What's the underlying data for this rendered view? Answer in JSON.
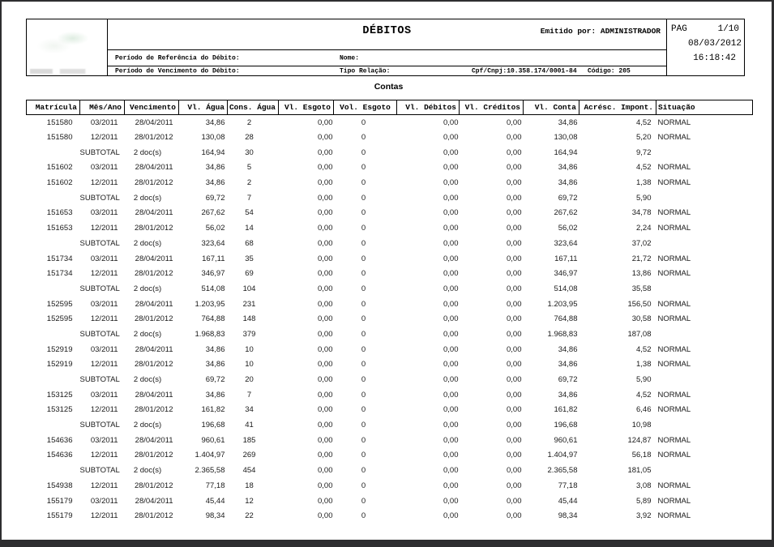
{
  "frame_color": "#2e2e30",
  "header": {
    "title": "DÉBITOS",
    "emitted_by_label": "Emitido por:",
    "emitted_by_value": "ADMINISTRADOR",
    "page_label": "PAG",
    "page_value": "1/10",
    "date": "08/03/2012",
    "time": "16:18:42",
    "ref_period_label": "Período de Referência do Débito:",
    "due_period_label": "Período de Vencimento do Débito:",
    "name_label": "Nome:",
    "relation_label": "Tipo Relação:",
    "cpf_cnpj": "Cpf/Cnpj:10.358.174/0001-84",
    "code": "Código: 205"
  },
  "section_title": "Contas",
  "table": {
    "columns": [
      "Matrícula",
      "Mês/Ano",
      "Vencimento",
      "Vl. Água",
      "Cons. Água",
      "Vl. Esgoto",
      "Vol. Esgoto",
      "Vl. Débitos",
      "Vl. Créditos",
      "Vl. Conta",
      "Acrésc. Impont.",
      "Situação"
    ],
    "column_keys": [
      "matricula",
      "mes-ano",
      "vencimento",
      "vl-agua",
      "cons-agua",
      "vl-esgoto",
      "vol-esgoto",
      "vl-debitos",
      "vl-creditos",
      "vl-conta",
      "acresc-impont",
      "situacao"
    ],
    "rows": [
      [
        "151580",
        "03/2011",
        "28/04/2011",
        "34,86",
        "2",
        "0,00",
        "0",
        "0,00",
        "0,00",
        "34,86",
        "4,52",
        "NORMAL"
      ],
      [
        "151580",
        "12/2011",
        "28/01/2012",
        "130,08",
        "28",
        "0,00",
        "0",
        "0,00",
        "0,00",
        "130,08",
        "5,20",
        "NORMAL"
      ],
      [
        "",
        "SUBTOTAL",
        "2 doc(s)",
        "164,94",
        "30",
        "0,00",
        "0",
        "0,00",
        "0,00",
        "164,94",
        "9,72",
        ""
      ],
      [
        "151602",
        "03/2011",
        "28/04/2011",
        "34,86",
        "5",
        "0,00",
        "0",
        "0,00",
        "0,00",
        "34,86",
        "4,52",
        "NORMAL"
      ],
      [
        "151602",
        "12/2011",
        "28/01/2012",
        "34,86",
        "2",
        "0,00",
        "0",
        "0,00",
        "0,00",
        "34,86",
        "1,38",
        "NORMAL"
      ],
      [
        "",
        "SUBTOTAL",
        "2 doc(s)",
        "69,72",
        "7",
        "0,00",
        "0",
        "0,00",
        "0,00",
        "69,72",
        "5,90",
        ""
      ],
      [
        "151653",
        "03/2011",
        "28/04/2011",
        "267,62",
        "54",
        "0,00",
        "0",
        "0,00",
        "0,00",
        "267,62",
        "34,78",
        "NORMAL"
      ],
      [
        "151653",
        "12/2011",
        "28/01/2012",
        "56,02",
        "14",
        "0,00",
        "0",
        "0,00",
        "0,00",
        "56,02",
        "2,24",
        "NORMAL"
      ],
      [
        "",
        "SUBTOTAL",
        "2 doc(s)",
        "323,64",
        "68",
        "0,00",
        "0",
        "0,00",
        "0,00",
        "323,64",
        "37,02",
        ""
      ],
      [
        "151734",
        "03/2011",
        "28/04/2011",
        "167,11",
        "35",
        "0,00",
        "0",
        "0,00",
        "0,00",
        "167,11",
        "21,72",
        "NORMAL"
      ],
      [
        "151734",
        "12/2011",
        "28/01/2012",
        "346,97",
        "69",
        "0,00",
        "0",
        "0,00",
        "0,00",
        "346,97",
        "13,86",
        "NORMAL"
      ],
      [
        "",
        "SUBTOTAL",
        "2 doc(s)",
        "514,08",
        "104",
        "0,00",
        "0",
        "0,00",
        "0,00",
        "514,08",
        "35,58",
        ""
      ],
      [
        "152595",
        "03/2011",
        "28/04/2011",
        "1.203,95",
        "231",
        "0,00",
        "0",
        "0,00",
        "0,00",
        "1.203,95",
        "156,50",
        "NORMAL"
      ],
      [
        "152595",
        "12/2011",
        "28/01/2012",
        "764,88",
        "148",
        "0,00",
        "0",
        "0,00",
        "0,00",
        "764,88",
        "30,58",
        "NORMAL"
      ],
      [
        "",
        "SUBTOTAL",
        "2 doc(s)",
        "1.968,83",
        "379",
        "0,00",
        "0",
        "0,00",
        "0,00",
        "1.968,83",
        "187,08",
        ""
      ],
      [
        "152919",
        "03/2011",
        "28/04/2011",
        "34,86",
        "10",
        "0,00",
        "0",
        "0,00",
        "0,00",
        "34,86",
        "4,52",
        "NORMAL"
      ],
      [
        "152919",
        "12/2011",
        "28/01/2012",
        "34,86",
        "10",
        "0,00",
        "0",
        "0,00",
        "0,00",
        "34,86",
        "1,38",
        "NORMAL"
      ],
      [
        "",
        "SUBTOTAL",
        "2 doc(s)",
        "69,72",
        "20",
        "0,00",
        "0",
        "0,00",
        "0,00",
        "69,72",
        "5,90",
        ""
      ],
      [
        "153125",
        "03/2011",
        "28/04/2011",
        "34,86",
        "7",
        "0,00",
        "0",
        "0,00",
        "0,00",
        "34,86",
        "4,52",
        "NORMAL"
      ],
      [
        "153125",
        "12/2011",
        "28/01/2012",
        "161,82",
        "34",
        "0,00",
        "0",
        "0,00",
        "0,00",
        "161,82",
        "6,46",
        "NORMAL"
      ],
      [
        "",
        "SUBTOTAL",
        "2 doc(s)",
        "196,68",
        "41",
        "0,00",
        "0",
        "0,00",
        "0,00",
        "196,68",
        "10,98",
        ""
      ],
      [
        "154636",
        "03/2011",
        "28/04/2011",
        "960,61",
        "185",
        "0,00",
        "0",
        "0,00",
        "0,00",
        "960,61",
        "124,87",
        "NORMAL"
      ],
      [
        "154636",
        "12/2011",
        "28/01/2012",
        "1.404,97",
        "269",
        "0,00",
        "0",
        "0,00",
        "0,00",
        "1.404,97",
        "56,18",
        "NORMAL"
      ],
      [
        "",
        "SUBTOTAL",
        "2 doc(s)",
        "2.365,58",
        "454",
        "0,00",
        "0",
        "0,00",
        "0,00",
        "2.365,58",
        "181,05",
        ""
      ],
      [
        "154938",
        "12/2011",
        "28/01/2012",
        "77,18",
        "18",
        "0,00",
        "0",
        "0,00",
        "0,00",
        "77,18",
        "3,08",
        "NORMAL"
      ],
      [
        "155179",
        "03/2011",
        "28/04/2011",
        "45,44",
        "12",
        "0,00",
        "0",
        "0,00",
        "0,00",
        "45,44",
        "5,89",
        "NORMAL"
      ],
      [
        "155179",
        "12/2011",
        "28/01/2012",
        "98,34",
        "22",
        "0,00",
        "0",
        "0,00",
        "0,00",
        "98,34",
        "3,92",
        "NORMAL"
      ]
    ]
  }
}
